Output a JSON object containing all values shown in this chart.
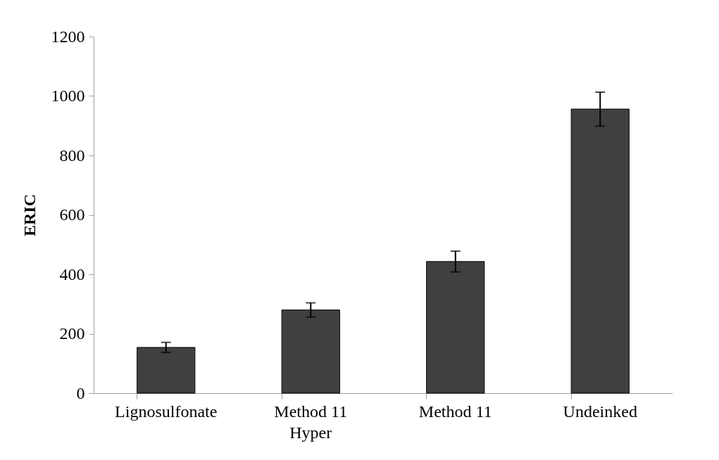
{
  "chart_data": {
    "type": "bar",
    "ylabel": "ERIC",
    "categories": [
      "Lignosulfonate",
      "Method 11\nHyper",
      "Method 11",
      "Undeinked"
    ],
    "values": [
      154,
      280,
      443,
      956
    ],
    "errors": [
      17,
      24,
      35,
      57
    ],
    "color": "#404040",
    "ylim": [
      0,
      1200
    ],
    "yticks": [
      0,
      200,
      400,
      600,
      800,
      1000,
      1200
    ],
    "grid": false
  }
}
